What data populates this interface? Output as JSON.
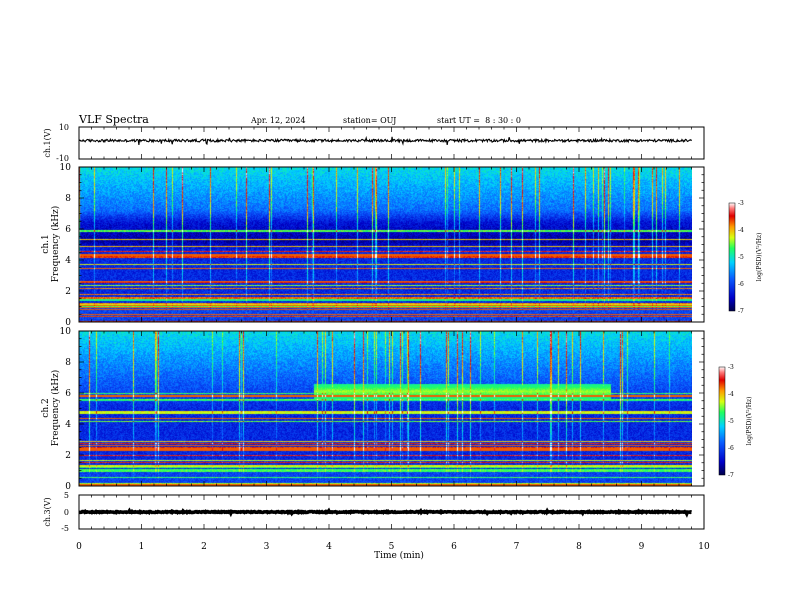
{
  "header": {
    "title": "VLF Spectra",
    "date": "Apr. 12, 2024",
    "station": "station= OUJ",
    "start_ut": "start UT =  8 : 30 : 0"
  },
  "colors": {
    "waveform": "#000000",
    "colormap": [
      "#00004a",
      "#0000c8",
      "#0a5cff",
      "#00d2ff",
      "#20ff60",
      "#d8ff10",
      "#ff9a00",
      "#e00000",
      "#ff7a7a",
      "#ffffff"
    ]
  },
  "chart_data": [
    {
      "type": "line",
      "id": "ch1-waveform",
      "ylabel": "ch.1(V)",
      "ylim": [
        -10,
        10
      ],
      "yticks": [
        "10",
        "-10"
      ],
      "xlim": [
        0,
        10
      ],
      "series": [
        {
          "baseline": 1.5,
          "amplitude": 0.8
        }
      ]
    },
    {
      "type": "heatmap",
      "id": "ch1-spectrogram",
      "ylabel_top": "ch.1",
      "ylabel": "Frequency (kHz)",
      "ylim": [
        0,
        10
      ],
      "yticks": [
        "0",
        "2",
        "4",
        "6",
        "8",
        "10"
      ],
      "xlim": [
        0,
        10
      ],
      "data_end_min": 9.8,
      "colorbar": {
        "label": "log(PSD)(V²/Hz)",
        "range": [
          -7,
          -3
        ],
        "ticks": [
          "-3",
          "-4",
          "-5",
          "-6",
          "-7"
        ]
      },
      "features": {
        "dark_gap_khz": [
          4.6,
          7.2
        ],
        "emission_band": null
      }
    },
    {
      "type": "heatmap",
      "id": "ch2-spectrogram",
      "ylabel_top": "ch.2",
      "ylabel": "Frequency (kHz)",
      "ylim": [
        0,
        10
      ],
      "yticks": [
        "0",
        "2",
        "4",
        "6",
        "8",
        "10"
      ],
      "xlim": [
        0,
        10
      ],
      "data_end_min": 9.8,
      "colorbar": {
        "label": "log(PSD)(V²/Hz)",
        "range": [
          -7,
          -3
        ],
        "ticks": [
          "-3",
          "-4",
          "-5",
          "-6",
          "-7"
        ]
      },
      "features": {
        "dark_gap_khz": null,
        "emission_band": {
          "t_start": 3.75,
          "t_end": 8.5,
          "f_center": 6.1,
          "f_width": 0.7
        }
      }
    },
    {
      "type": "line",
      "id": "ch3-waveform",
      "ylabel": "ch.3(V)",
      "ylim": [
        -5,
        5
      ],
      "yticks": [
        "5",
        "0",
        "-5"
      ],
      "xlim": [
        0,
        10
      ],
      "series": [
        {
          "baseline": 0,
          "amplitude": 0.15
        }
      ]
    }
  ],
  "xaxis": {
    "label": "Time (min)",
    "ticks": [
      "0",
      "1",
      "2",
      "3",
      "4",
      "5",
      "6",
      "7",
      "8",
      "9",
      "10"
    ]
  }
}
